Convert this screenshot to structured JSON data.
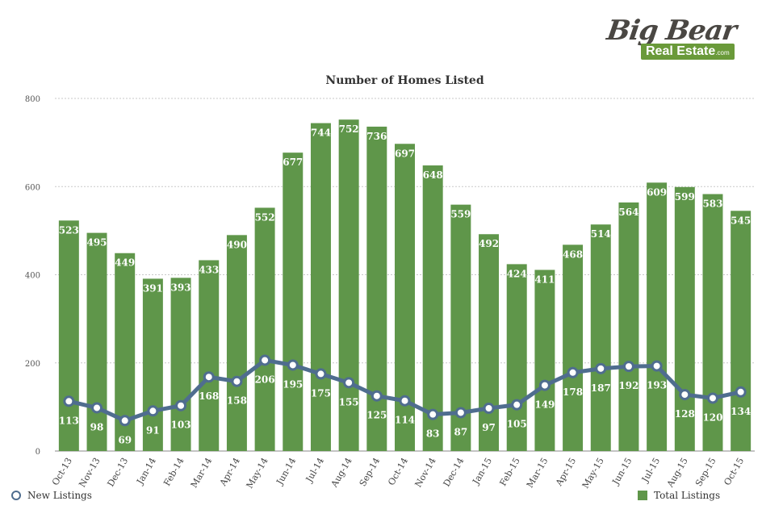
{
  "logo": {
    "line1": "Big Bear",
    "line2": "Real Estate",
    "suffix": ".com"
  },
  "legend": {
    "line_label": "New Listings",
    "bar_label": "Total Listings"
  },
  "colors": {
    "bar": "#5f964a",
    "line": "#4f6d8f",
    "marker_fill": "#ffffff"
  },
  "chart_data": {
    "type": "bar",
    "title": "Number of Homes Listed",
    "categories": [
      "Oct-13",
      "Nov-13",
      "Dec-13",
      "Jan-14",
      "Feb-14",
      "Mar-14",
      "Apr-14",
      "May-14",
      "Jun-14",
      "Jul-14",
      "Aug-14",
      "Sep-14",
      "Oct-14",
      "Nov-14",
      "Dec-14",
      "Jan-15",
      "Feb-15",
      "Mar-15",
      "Apr-15",
      "May-15",
      "Jun-15",
      "Jul-15",
      "Aug-15",
      "Sep-15",
      "Oct-15"
    ],
    "series": [
      {
        "name": "Total Listings",
        "type": "bar",
        "values": [
          523,
          495,
          449,
          391,
          393,
          433,
          490,
          552,
          677,
          744,
          752,
          736,
          697,
          648,
          559,
          492,
          424,
          411,
          468,
          514,
          564,
          609,
          599,
          583,
          545
        ]
      },
      {
        "name": "New Listings",
        "type": "line",
        "values": [
          113,
          98,
          69,
          91,
          103,
          168,
          158,
          206,
          195,
          175,
          155,
          125,
          114,
          83,
          87,
          97,
          105,
          149,
          178,
          187,
          192,
          193,
          128,
          120,
          134
        ]
      }
    ],
    "ylim": [
      0,
      800
    ],
    "yticks": [
      0,
      200,
      400,
      600,
      800
    ],
    "grid": true,
    "legend_placement": "bottom"
  }
}
